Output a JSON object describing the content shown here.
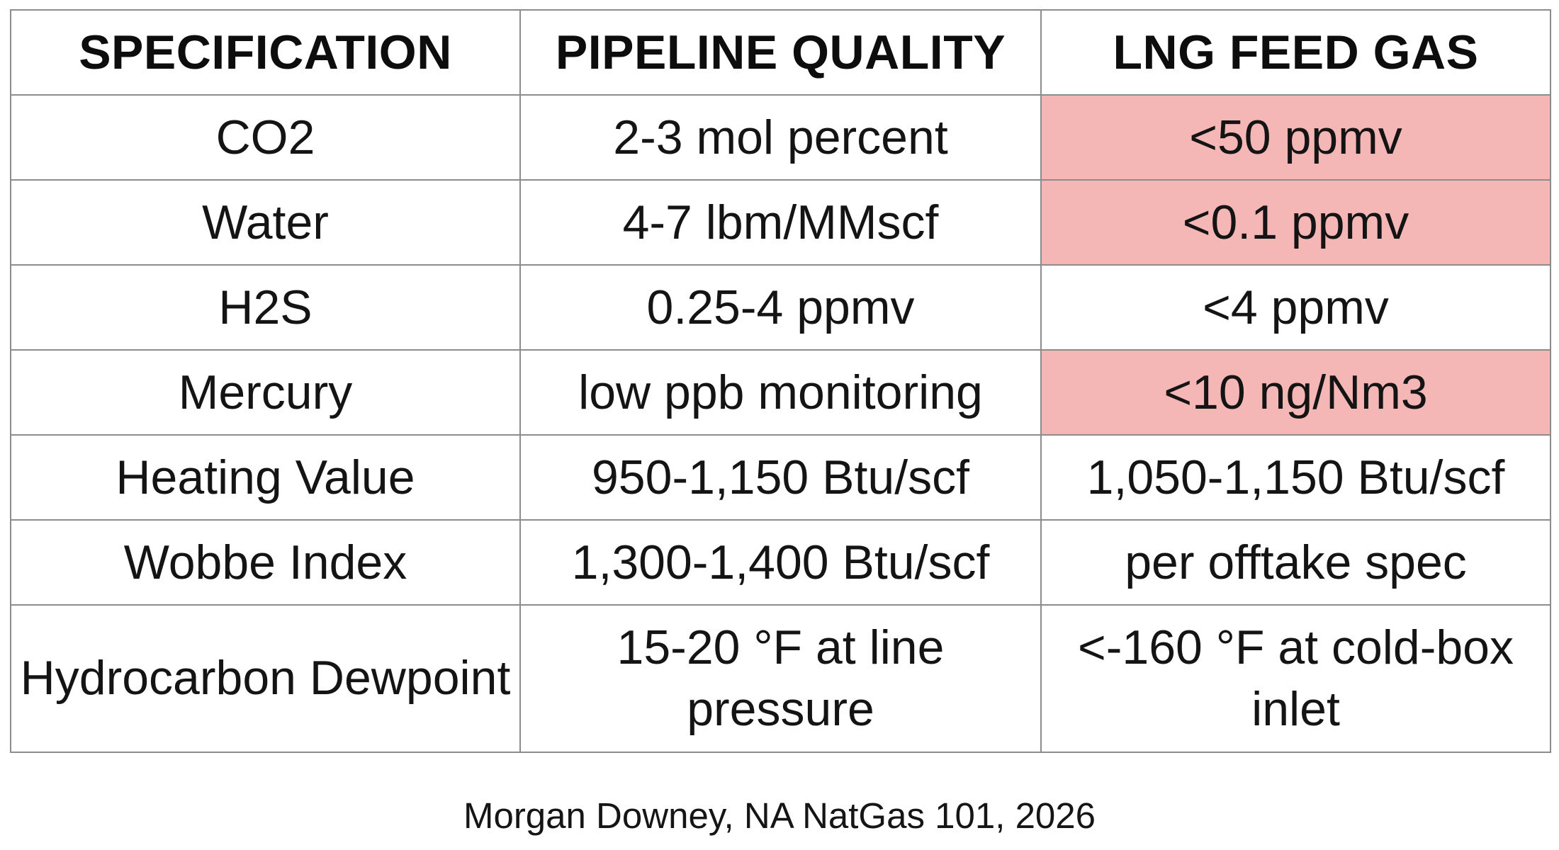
{
  "table": {
    "headers": [
      "SPECIFICATION",
      "PIPELINE QUALITY",
      "LNG FEED GAS"
    ],
    "rows": [
      {
        "spec": "CO2",
        "pipeline": "2-3 mol percent",
        "lng": "<50 ppmv",
        "lng_highlight": true
      },
      {
        "spec": "Water",
        "pipeline": "4-7 lbm/MMscf",
        "lng": "<0.1 ppmv",
        "lng_highlight": true
      },
      {
        "spec": "H2S",
        "pipeline": "0.25-4 ppmv",
        "lng": "<4 ppmv",
        "lng_highlight": false
      },
      {
        "spec": "Mercury",
        "pipeline": "low ppb monitoring",
        "lng": "<10 ng/Nm3",
        "lng_highlight": true
      },
      {
        "spec": "Heating Value",
        "pipeline": "950-1,150 Btu/scf",
        "lng": "1,050-1,150 Btu/scf",
        "lng_highlight": false
      },
      {
        "spec": "Wobbe Index",
        "pipeline": "1,300-1,400 Btu/scf",
        "lng": "per offtake spec",
        "lng_highlight": false
      },
      {
        "spec": "Hydrocarbon Dewpoint",
        "pipeline": "15-20 °F at line pressure",
        "lng": "<-160 °F at cold-box inlet",
        "lng_highlight": false
      }
    ]
  },
  "footer": {
    "credit": "Morgan Downey, NA NatGas 101, 2026"
  },
  "colors": {
    "highlight": "#f4b7b5",
    "border": "#8c8c8c",
    "text": "#111111",
    "background": "#ffffff"
  }
}
